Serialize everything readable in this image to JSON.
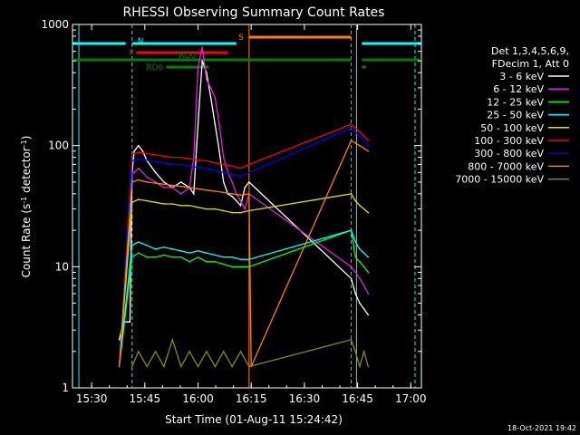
{
  "chart_data": {
    "type": "line",
    "title": "RHESSI Observing Summary Count Rates",
    "xlabel": "Start Time (01-Aug-11 15:24:42)",
    "ylabel_parts": {
      "a": "Count Rate (s",
      "sup": "-1",
      "b": " detector",
      "c": ")"
    },
    "yscale": "log",
    "ylim": [
      1,
      1000
    ],
    "xlim": [
      15.41,
      17.05
    ],
    "x_unit": "decimal hours UT",
    "x_tick_values": [
      15.5,
      15.75,
      16.0,
      16.25,
      16.5,
      16.75,
      17.0
    ],
    "x_tick_labels": [
      "15:30",
      "15:45",
      "16:00",
      "16:15",
      "16:30",
      "16:45",
      "17:00"
    ],
    "y_tick_values": [
      1,
      10,
      100,
      1000
    ],
    "y_tick_labels": [
      "1",
      "10",
      "100",
      "1000"
    ],
    "legend": {
      "placement": "right",
      "header": [
        "Det 1,3,4,5,6,9,",
        "FDecim 1, Att 0"
      ],
      "entries": [
        {
          "label": "3 - 6 keV",
          "color": "#ffffff"
        },
        {
          "label": "6 - 12 keV",
          "color": "#e020e0"
        },
        {
          "label": "12 - 25 keV",
          "color": "#00ff00"
        },
        {
          "label": "25 - 50 keV",
          "color": "#00ffff"
        },
        {
          "label": "50 - 100 keV",
          "color": "#e0e000"
        },
        {
          "label": "100 - 300 keV",
          "color": "#ff0000"
        },
        {
          "label": "300 - 800 keV",
          "color": "#0000ff"
        },
        {
          "label": "800 - 7000 keV",
          "color": "#ff8000"
        },
        {
          "label": "7000 - 15000 keV",
          "color": "#8b8b00"
        }
      ]
    },
    "flags": [
      {
        "label": "N",
        "color": "#00ffff",
        "segments": [
          [
            15.41,
            15.66
          ],
          [
            15.69,
            16.18
          ],
          [
            16.77,
            17.05
          ]
        ]
      },
      {
        "label": "S",
        "color": "#ff8000",
        "segments": [
          [
            16.24,
            16.72
          ]
        ]
      },
      {
        "label": "F",
        "color": "#ff0000",
        "segments": [
          [
            15.71,
            16.14
          ]
        ]
      },
      {
        "label": "RD0",
        "color": "#008000",
        "segments": [
          [
            15.41,
            16.72
          ],
          [
            16.77,
            17.05
          ]
        ]
      },
      {
        "label": "RD6",
        "color": "#008000",
        "segments": [
          [
            15.85,
            16.05
          ],
          [
            16.77,
            16.79
          ]
        ]
      }
    ],
    "vlines": [
      {
        "x": 15.44,
        "color": "#00ffff",
        "style": "solid"
      },
      {
        "x": 15.69,
        "color": "#00ffff",
        "style": "dashed"
      },
      {
        "x": 16.24,
        "color": "#ff8000",
        "style": "solid"
      },
      {
        "x": 16.72,
        "color": "#ff8000",
        "style": "dashed"
      },
      {
        "x": 16.745,
        "color": "#00ffff",
        "style": "solid"
      },
      {
        "x": 17.02,
        "color": "#00ffff",
        "style": "dashed"
      }
    ],
    "series": [
      {
        "name": "3 - 6 keV",
        "color": "#ffffff",
        "x": [
          15.63,
          15.64,
          15.65,
          15.66,
          15.67,
          15.68,
          15.69,
          15.7,
          15.72,
          15.74,
          15.76,
          15.8,
          15.84,
          15.88,
          15.92,
          15.96,
          15.98,
          16.0,
          16.02,
          16.04,
          16.06,
          16.08,
          16.1,
          16.12,
          16.14,
          16.16,
          16.18,
          16.2,
          16.22,
          16.24,
          16.72,
          16.74,
          16.76,
          16.78,
          16.8
        ],
        "y": [
          2.5,
          3.0,
          3.5,
          3.5,
          3.5,
          3.5,
          60,
          90,
          100,
          90,
          75,
          60,
          50,
          45,
          50,
          45,
          40,
          150,
          500,
          400,
          250,
          150,
          90,
          50,
          40,
          38,
          35,
          32,
          45,
          50,
          8,
          6,
          5,
          4.5,
          4
        ]
      },
      {
        "name": "6 - 12 keV",
        "color": "#e020e0",
        "x": [
          15.63,
          15.69,
          15.7,
          15.72,
          15.74,
          15.76,
          15.8,
          15.84,
          15.88,
          15.92,
          15.96,
          15.98,
          16.0,
          16.02,
          16.04,
          16.06,
          16.08,
          16.1,
          16.12,
          16.14,
          16.16,
          16.18,
          16.2,
          16.22,
          16.24,
          16.72,
          16.74,
          16.76,
          16.78,
          16.8
        ],
        "y": [
          1.5,
          60,
          60,
          65,
          60,
          55,
          50,
          45,
          45,
          40,
          45,
          80,
          450,
          650,
          350,
          300,
          250,
          150,
          80,
          60,
          50,
          40,
          35,
          30,
          40,
          10,
          9,
          8,
          7,
          6
        ]
      },
      {
        "name": "12 - 25 keV",
        "color": "#00ff00",
        "x": [
          15.63,
          15.69,
          15.72,
          15.76,
          15.8,
          15.84,
          15.88,
          15.92,
          15.96,
          16.0,
          16.04,
          16.08,
          16.12,
          16.16,
          16.2,
          16.24,
          16.72,
          16.74,
          16.76,
          16.78,
          16.8
        ],
        "y": [
          1.5,
          12,
          13,
          12,
          12,
          12.5,
          12,
          12,
          11,
          12,
          11,
          11,
          10.5,
          10,
          10,
          10,
          20,
          12,
          11,
          10,
          9
        ]
      },
      {
        "name": "25 - 50 keV",
        "color": "#00ffff",
        "x": [
          15.63,
          15.69,
          15.72,
          15.76,
          15.8,
          15.84,
          15.88,
          15.92,
          15.96,
          16.0,
          16.04,
          16.08,
          16.12,
          16.16,
          16.2,
          16.24,
          16.72,
          16.74,
          16.76,
          16.78,
          16.8
        ],
        "y": [
          1.5,
          15,
          16,
          15,
          14,
          14.5,
          14,
          13.5,
          13,
          13.5,
          13,
          12.5,
          12,
          12,
          11.5,
          11.5,
          20,
          16,
          14,
          13,
          12
        ]
      },
      {
        "name": "50 - 100 keV",
        "color": "#e0e000",
        "x": [
          15.63,
          15.69,
          15.72,
          15.76,
          15.8,
          15.84,
          15.88,
          15.92,
          15.96,
          16.0,
          16.04,
          16.08,
          16.12,
          16.16,
          16.2,
          16.24,
          16.72,
          16.74,
          16.76,
          16.78,
          16.8
        ],
        "y": [
          1.5,
          34,
          36,
          35,
          34,
          33,
          33,
          32,
          32,
          31,
          30,
          30,
          29,
          28,
          28,
          29,
          40,
          35,
          32,
          30,
          28
        ]
      },
      {
        "name": "100 - 300 keV",
        "color": "#ff0000",
        "x": [
          15.63,
          15.69,
          15.72,
          15.76,
          15.8,
          15.84,
          15.88,
          15.92,
          15.96,
          16.0,
          16.04,
          16.08,
          16.12,
          16.16,
          16.2,
          16.24,
          16.72,
          16.74,
          16.76,
          16.78,
          16.8
        ],
        "y": [
          1.5,
          85,
          88,
          86,
          84,
          82,
          80,
          80,
          78,
          76,
          75,
          72,
          70,
          68,
          65,
          70,
          150,
          140,
          130,
          120,
          110
        ]
      },
      {
        "name": "300 - 800 keV",
        "color": "#0000ff",
        "x": [
          15.63,
          15.69,
          15.72,
          15.76,
          15.8,
          15.84,
          15.88,
          15.92,
          15.96,
          16.0,
          16.04,
          16.08,
          16.12,
          16.16,
          16.2,
          16.24,
          16.72,
          16.74,
          16.76,
          16.78,
          16.8
        ],
        "y": [
          1.5,
          75,
          78,
          76,
          74,
          72,
          70,
          70,
          68,
          66,
          65,
          63,
          60,
          58,
          56,
          60,
          140,
          130,
          120,
          110,
          100
        ]
      },
      {
        "name": "800 - 7000 keV",
        "color": "#ff8000",
        "x": [
          15.63,
          15.69,
          15.72,
          15.76,
          15.8,
          15.84,
          15.88,
          15.92,
          15.96,
          16.0,
          16.04,
          16.08,
          16.12,
          16.16,
          16.2,
          16.24,
          16.25,
          16.72,
          16.74,
          16.76,
          16.78,
          16.8
        ],
        "y": [
          1.5,
          50,
          52,
          50,
          49,
          48,
          47,
          46,
          45,
          44,
          43,
          42,
          41,
          40,
          39,
          40,
          1.5,
          110,
          105,
          100,
          95,
          90
        ]
      },
      {
        "name": "7000 - 15000 keV",
        "color": "#8b8b00",
        "x": [
          15.69,
          15.72,
          15.76,
          15.8,
          15.84,
          15.88,
          15.92,
          15.96,
          16.0,
          16.04,
          16.08,
          16.12,
          16.16,
          16.2,
          16.24,
          16.72,
          16.74,
          16.76,
          16.78,
          16.8
        ],
        "y": [
          1.5,
          2.0,
          1.5,
          2.0,
          1.5,
          2.5,
          1.5,
          2.0,
          1.5,
          2.0,
          1.5,
          2.0,
          1.5,
          2.0,
          1.5,
          2.5,
          2.0,
          1.5,
          2.0,
          1.5
        ]
      }
    ],
    "timestamp": "18-Oct-2021 19:42"
  }
}
